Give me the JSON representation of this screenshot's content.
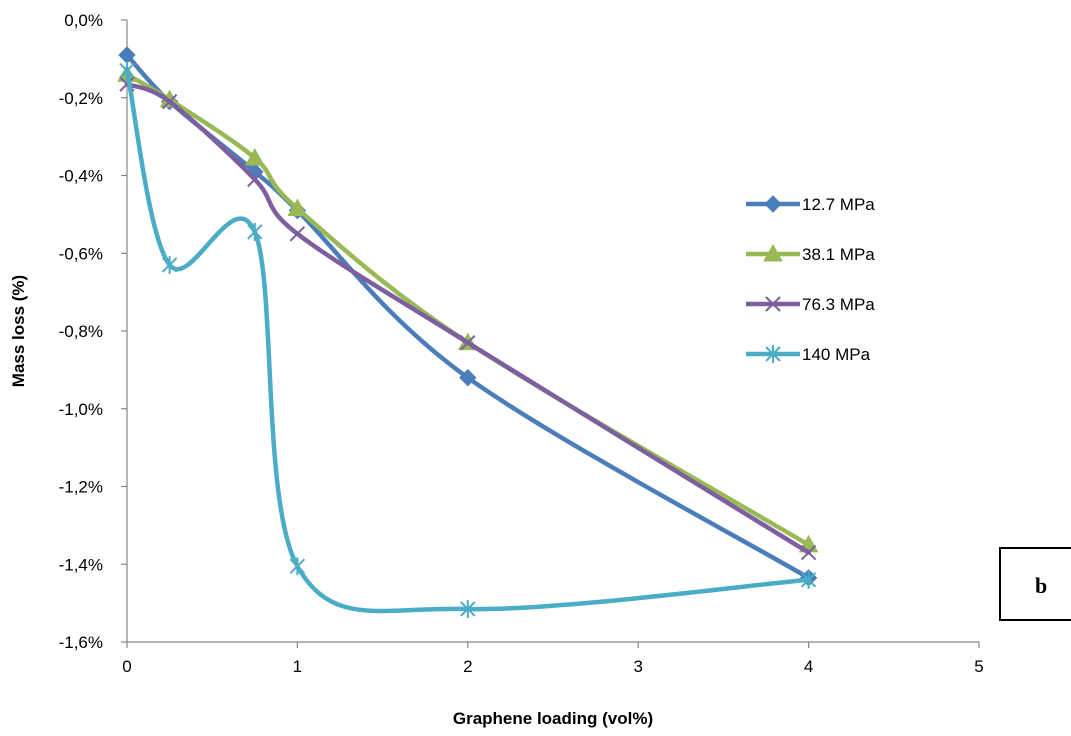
{
  "chart_data": {
    "type": "line",
    "title": "",
    "xlabel": "Graphene loading (vol%)",
    "ylabel": "Mass loss (%)",
    "xlim": [
      0,
      5
    ],
    "ylim": [
      -1.6,
      0.0
    ],
    "xticks": [
      0,
      1,
      2,
      3,
      4,
      5
    ],
    "xtick_labels": [
      "0",
      "1",
      "2",
      "3",
      "4",
      "5"
    ],
    "yticks": [
      0.0,
      -0.2,
      -0.4,
      -0.6,
      -0.8,
      -1.0,
      -1.2,
      -1.4,
      -1.6
    ],
    "ytick_labels": [
      "0,0%",
      "-0,2%",
      "-0,4%",
      "-0,6%",
      "-0,8%",
      "-1,0%",
      "-1,2%",
      "-1,4%",
      "-1,6%"
    ],
    "grid": false,
    "smooth": true,
    "legend_position": "right",
    "series": [
      {
        "name": "12.7 MPa",
        "color": "#4A7EBB",
        "marker": "diamond",
        "x": [
          0,
          0.25,
          0.75,
          1,
          2,
          4
        ],
        "y": [
          -0.09,
          -0.21,
          -0.39,
          -0.49,
          -0.92,
          -1.435
        ]
      },
      {
        "name": "38.1 MPa",
        "color": "#98B954",
        "marker": "triangle",
        "x": [
          0,
          0.25,
          0.75,
          1,
          2,
          4
        ],
        "y": [
          -0.14,
          -0.205,
          -0.355,
          -0.485,
          -0.83,
          -1.35
        ]
      },
      {
        "name": "76.3 MPa",
        "color": "#7D5FA0",
        "marker": "x",
        "x": [
          0,
          0.25,
          0.75,
          1,
          2,
          4
        ],
        "y": [
          -0.165,
          -0.21,
          -0.41,
          -0.55,
          -0.83,
          -1.37
        ]
      },
      {
        "name": "140 MPa",
        "color": "#4BACC6",
        "marker": "asterisk",
        "x": [
          0,
          0.25,
          0.75,
          1,
          2,
          4
        ],
        "y": [
          -0.13,
          -0.63,
          -0.545,
          -1.405,
          -1.515,
          -1.44
        ]
      }
    ]
  },
  "panel_label": "b"
}
